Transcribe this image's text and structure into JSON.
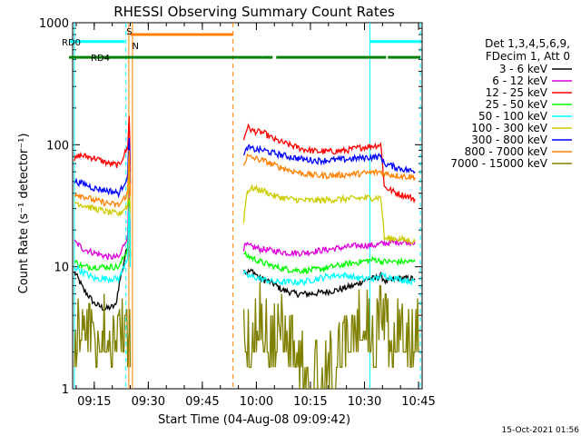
{
  "chart_data": {
    "type": "line",
    "title": "RHESSI Observing Summary Count Rates",
    "xlabel": "Start Time (04-Aug-08 09:09:42)",
    "ylabel": "Count Rate (s⁻¹ detector⁻¹)",
    "yscale": "log",
    "ylim": [
      1,
      1000
    ],
    "xlim_minutes_after_0909": [
      0.0,
      97.0
    ],
    "x_ticks": [
      {
        "label": "09:15",
        "minute": 6
      },
      {
        "label": "09:30",
        "minute": 21
      },
      {
        "label": "09:45",
        "minute": 36
      },
      {
        "label": "10:00",
        "minute": 51
      },
      {
        "label": "10:15",
        "minute": 66
      },
      {
        "label": "10:30",
        "minute": 81
      },
      {
        "label": "10:45",
        "minute": 96
      }
    ],
    "y_ticks": [
      {
        "label": "1",
        "value": 1
      },
      {
        "label": "10",
        "value": 10
      },
      {
        "label": "100",
        "value": 100
      },
      {
        "label": "1000",
        "value": 1000
      }
    ],
    "legend": {
      "placement": "right",
      "header": [
        "Det 1,3,4,5,6,9,",
        "FDecim 1, Att 0"
      ]
    },
    "series": [
      {
        "name": "3 - 6 keV",
        "color": "#000000",
        "points": [
          [
            0.5,
            9
          ],
          [
            3,
            6.5
          ],
          [
            6,
            5
          ],
          [
            9,
            4.5
          ],
          [
            12,
            4.8
          ],
          [
            14,
            10
          ],
          [
            15.3,
            15
          ],
          [
            15.7,
            40
          ],
          [
            16.0,
            12
          ],
          [
            47.5,
            10
          ],
          [
            48,
            9
          ],
          [
            50,
            9.2
          ],
          [
            52,
            8
          ],
          [
            55,
            7.5
          ],
          [
            58,
            6.5
          ],
          [
            62,
            6.0
          ],
          [
            66,
            6.0
          ],
          [
            70,
            6.2
          ],
          [
            74,
            6.5
          ],
          [
            78,
            7
          ],
          [
            82,
            8
          ],
          [
            84,
            8
          ],
          [
            85.5,
            8.5
          ],
          [
            87,
            7.5
          ],
          [
            90,
            8
          ],
          [
            95,
            8
          ]
        ]
      },
      {
        "name": "6 - 12 keV",
        "color": "#dd00dd",
        "points": [
          [
            0.5,
            16
          ],
          [
            3,
            14
          ],
          [
            6,
            13
          ],
          [
            10,
            12
          ],
          [
            13,
            12
          ],
          [
            15.3,
            18
          ],
          [
            15.7,
            45
          ],
          [
            16.0,
            15
          ],
          [
            47.5,
            14
          ],
          [
            48,
            15
          ],
          [
            52,
            14
          ],
          [
            56,
            13.5
          ],
          [
            60,
            13
          ],
          [
            64,
            13
          ],
          [
            68,
            13.5
          ],
          [
            72,
            14
          ],
          [
            76,
            14.5
          ],
          [
            80,
            15
          ],
          [
            84,
            15
          ],
          [
            86,
            15.5
          ],
          [
            90,
            16
          ],
          [
            95,
            16
          ]
        ]
      },
      {
        "name": "12 - 25 keV",
        "color": "#ff0000",
        "points": [
          [
            0.5,
            75
          ],
          [
            2,
            82
          ],
          [
            6,
            78
          ],
          [
            10,
            70
          ],
          [
            13,
            68
          ],
          [
            15.3,
            95
          ],
          [
            15.7,
            170
          ],
          [
            16.0,
            60
          ],
          [
            47.5,
            110
          ],
          [
            48.5,
            140
          ],
          [
            50,
            130
          ],
          [
            53,
            125
          ],
          [
            56,
            110
          ],
          [
            60,
            100
          ],
          [
            64,
            92
          ],
          [
            68,
            88
          ],
          [
            72,
            88
          ],
          [
            76,
            90
          ],
          [
            80,
            95
          ],
          [
            85.5,
            100
          ],
          [
            86.5,
            45
          ],
          [
            90,
            40
          ],
          [
            95,
            36
          ]
        ]
      },
      {
        "name": "25 - 50 keV",
        "color": "#00ff00",
        "points": [
          [
            0.5,
            11
          ],
          [
            3,
            10
          ],
          [
            6,
            10
          ],
          [
            10,
            10
          ],
          [
            13,
            10
          ],
          [
            15.3,
            14
          ],
          [
            15.7,
            35
          ],
          [
            16.0,
            12
          ],
          [
            47.5,
            13
          ],
          [
            48,
            12.5
          ],
          [
            52,
            11
          ],
          [
            56,
            10
          ],
          [
            60,
            9.5
          ],
          [
            64,
            9.3
          ],
          [
            68,
            9.5
          ],
          [
            72,
            10
          ],
          [
            76,
            10.5
          ],
          [
            80,
            11
          ],
          [
            84,
            11.5
          ],
          [
            86,
            11
          ],
          [
            90,
            11
          ],
          [
            95,
            11
          ]
        ]
      },
      {
        "name": "50 - 100 keV",
        "color": "#00ffff",
        "points": [
          [
            0.5,
            10
          ],
          [
            3,
            9
          ],
          [
            6,
            8
          ],
          [
            10,
            8
          ],
          [
            13,
            8
          ],
          [
            15.3,
            12
          ],
          [
            15.7,
            30
          ],
          [
            16.0,
            10
          ],
          [
            47.5,
            9
          ],
          [
            48,
            8.5
          ],
          [
            52,
            8
          ],
          [
            56,
            7.5
          ],
          [
            60,
            7.5
          ],
          [
            64,
            7.5
          ],
          [
            68,
            8
          ],
          [
            72,
            8.5
          ],
          [
            76,
            8.5
          ],
          [
            80,
            8
          ],
          [
            84,
            8
          ],
          [
            86,
            8.5
          ],
          [
            90,
            8
          ],
          [
            95,
            7.5
          ]
        ]
      },
      {
        "name": "100 - 300 keV",
        "color": "#cccc00",
        "points": [
          [
            0.5,
            34
          ],
          [
            3,
            32
          ],
          [
            6,
            30
          ],
          [
            10,
            28
          ],
          [
            13,
            27
          ],
          [
            15.3,
            32
          ],
          [
            15.7,
            60
          ],
          [
            16.0,
            28
          ],
          [
            47.5,
            24
          ],
          [
            48.5,
            42
          ],
          [
            50,
            44
          ],
          [
            53,
            42
          ],
          [
            56,
            38
          ],
          [
            60,
            36
          ],
          [
            64,
            35
          ],
          [
            68,
            35
          ],
          [
            72,
            35.5
          ],
          [
            76,
            36
          ],
          [
            80,
            36.5
          ],
          [
            85.5,
            37
          ],
          [
            86.5,
            17
          ],
          [
            90,
            17
          ],
          [
            95,
            16
          ]
        ]
      },
      {
        "name": "300 - 800 keV",
        "color": "#0000ff",
        "points": [
          [
            0.5,
            50
          ],
          [
            3,
            48
          ],
          [
            6,
            44
          ],
          [
            10,
            42
          ],
          [
            13,
            40
          ],
          [
            15.3,
            55
          ],
          [
            15.7,
            120
          ],
          [
            16.0,
            48
          ],
          [
            47.5,
            80
          ],
          [
            48.5,
            95
          ],
          [
            50,
            92
          ],
          [
            53,
            90
          ],
          [
            56,
            85
          ],
          [
            60,
            80
          ],
          [
            64,
            76
          ],
          [
            68,
            74
          ],
          [
            72,
            75
          ],
          [
            76,
            76
          ],
          [
            80,
            78
          ],
          [
            85.5,
            80
          ],
          [
            86.5,
            70
          ],
          [
            90,
            65
          ],
          [
            95,
            60
          ]
        ]
      },
      {
        "name": "800 - 7000 keV",
        "color": "#ff8000",
        "points": [
          [
            0.5,
            40
          ],
          [
            3,
            38
          ],
          [
            6,
            35
          ],
          [
            10,
            33
          ],
          [
            13,
            32
          ],
          [
            15.3,
            40
          ],
          [
            15.7,
            90
          ],
          [
            16.0,
            38
          ],
          [
            47.5,
            70
          ],
          [
            48.5,
            80
          ],
          [
            50,
            78
          ],
          [
            53,
            74
          ],
          [
            56,
            68
          ],
          [
            60,
            62
          ],
          [
            64,
            58
          ],
          [
            68,
            56
          ],
          [
            72,
            56
          ],
          [
            76,
            57
          ],
          [
            80,
            58
          ],
          [
            85.5,
            60
          ],
          [
            86.5,
            58
          ],
          [
            90,
            56
          ],
          [
            95,
            54
          ]
        ]
      },
      {
        "name": "7000 - 15000 keV",
        "color": "#808000",
        "points": [
          [
            0.5,
            1.5
          ],
          [
            3,
            2.5
          ],
          [
            6,
            1.5
          ],
          [
            9,
            2
          ],
          [
            12,
            1.5
          ],
          [
            14,
            2
          ],
          [
            15.3,
            1.5
          ],
          [
            15.7,
            3
          ],
          [
            16.0,
            1.5
          ],
          [
            47.5,
            2
          ],
          [
            49,
            1.5
          ],
          [
            52,
            2.5
          ],
          [
            55,
            1.5
          ],
          [
            58,
            2
          ],
          [
            61,
            1.5
          ],
          [
            64,
            1
          ],
          [
            68,
            1
          ],
          [
            72,
            1
          ],
          [
            75,
            1.5
          ],
          [
            78,
            2
          ],
          [
            81,
            2.5
          ],
          [
            84,
            1.5
          ],
          [
            86,
            3
          ],
          [
            88,
            1.5
          ],
          [
            91,
            2
          ],
          [
            94,
            1.5
          ],
          [
            96,
            2
          ]
        ]
      }
    ],
    "status_bars": [
      {
        "label": "RD0",
        "color": "#00ffff",
        "y": 700,
        "segments": [
          [
            -1,
            14.5
          ],
          [
            82.5,
            96.5
          ]
        ]
      },
      {
        "label": "RD4",
        "color": "#008000",
        "y": 520,
        "segments": [
          [
            -1,
            52.5
          ],
          [
            52.5,
            55.5
          ],
          [
            56.5,
            87
          ],
          [
            87.5,
            96.5
          ]
        ]
      },
      {
        "label": "S",
        "color": "#ff8000",
        "y": 800,
        "segments": [
          [
            16,
            44.5
          ]
        ]
      },
      {
        "label": "N",
        "color": "#00ffff",
        "y": 650,
        "segments": []
      }
    ],
    "vertical_markers": [
      {
        "minute": 0.5,
        "color": "#00ffff",
        "style": "solid"
      },
      {
        "minute": 14.8,
        "color": "#00ffff",
        "style": "dashed"
      },
      {
        "minute": 15.6,
        "color": "#ff8000",
        "style": "solid"
      },
      {
        "minute": 16.6,
        "color": "#ff8000",
        "style": "solid"
      },
      {
        "minute": 44.5,
        "color": "#ff8000",
        "style": "dashed"
      },
      {
        "minute": 82.5,
        "color": "#00ffff",
        "style": "solid"
      },
      {
        "minute": 96.5,
        "color": "#00ffff",
        "style": "dashed"
      }
    ],
    "footer_date": "15-Oct-2021 01:56"
  }
}
